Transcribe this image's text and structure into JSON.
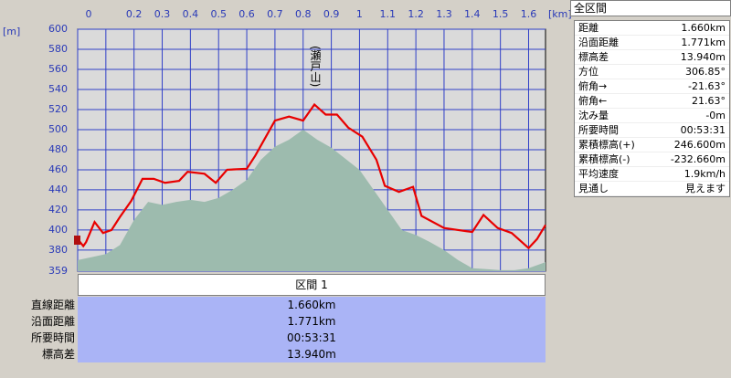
{
  "chart_data": {
    "type": "line",
    "x_unit_label": "[km]",
    "y_unit_label": "[m]",
    "annotation": "(瀬戸山)",
    "xlim": [
      0,
      1.66
    ],
    "ylim": [
      359,
      600
    ],
    "xticks": [
      0.0,
      {
        "value": 0.1,
        "label": null
      },
      0.2,
      0.3,
      0.4,
      0.5,
      0.6,
      0.7,
      0.8,
      0.9,
      1.0,
      1.1,
      1.2,
      1.3,
      1.4,
      1.5,
      1.6
    ],
    "yticks": [
      359,
      380,
      400,
      420,
      440,
      460,
      480,
      500,
      520,
      540,
      560,
      580,
      600
    ],
    "grid": true,
    "series": [
      {
        "color": "#9dbbae",
        "fill": true,
        "x": [
          0,
          0.05,
          0.1,
          0.15,
          0.2,
          0.25,
          0.3,
          0.35,
          0.4,
          0.45,
          0.5,
          0.55,
          0.6,
          0.65,
          0.7,
          0.75,
          0.8,
          0.85,
          0.9,
          1.0,
          1.05,
          1.1,
          1.15,
          1.2,
          1.25,
          1.3,
          1.35,
          1.4,
          1.45,
          1.5,
          1.55,
          1.6,
          1.66
        ],
        "values": [
          370,
          373,
          376,
          385,
          410,
          428,
          425,
          428,
          430,
          428,
          432,
          440,
          450,
          470,
          483,
          490,
          500,
          490,
          482,
          460,
          440,
          420,
          400,
          395,
          388,
          380,
          370,
          362,
          361,
          360,
          360,
          362,
          368
        ]
      },
      {
        "color": "#e80000",
        "fill": false,
        "x": [
          0,
          0.02,
          0.03,
          0.06,
          0.09,
          0.12,
          0.15,
          0.19,
          0.23,
          0.27,
          0.31,
          0.36,
          0.39,
          0.45,
          0.49,
          0.53,
          0.6,
          0.63,
          0.7,
          0.75,
          0.8,
          0.84,
          0.88,
          0.92,
          0.96,
          1.01,
          1.06,
          1.09,
          1.14,
          1.19,
          1.22,
          1.3,
          1.35,
          1.4,
          1.44,
          1.49,
          1.54,
          1.6,
          1.63,
          1.66
        ],
        "values": [
          391,
          384,
          388,
          408,
          397,
          400,
          413,
          429,
          451,
          451,
          447,
          449,
          458,
          456,
          447,
          460,
          461,
          474,
          509,
          513,
          509,
          525,
          515,
          515,
          502,
          493,
          470,
          444,
          438,
          443,
          414,
          402,
          400,
          398,
          415,
          402,
          397,
          382,
          391,
          405
        ]
      }
    ]
  },
  "summary": {
    "title": "全区間",
    "rows": [
      [
        "距離",
        "1.660km"
      ],
      [
        "沿面距離",
        "1.771km"
      ],
      [
        "標高差",
        "13.940m"
      ],
      [
        "方位",
        "306.85°"
      ],
      [
        "俯角→",
        "-21.63°"
      ],
      [
        "俯角←",
        "21.63°"
      ],
      [
        "沈み量",
        "-0m"
      ],
      [
        "所要時間",
        "00:53:31"
      ],
      [
        "累積標高(+)",
        "246.600m"
      ],
      [
        "累積標高(-)",
        "-232.660m"
      ],
      [
        "平均速度",
        "1.9km/h"
      ],
      [
        "見通し",
        "見えます"
      ]
    ]
  },
  "section": {
    "title": "区間 1",
    "rows": [
      [
        "直線距離",
        "1.660km"
      ],
      [
        "沿面距離",
        "1.771km"
      ],
      [
        "所要時間",
        "00:53:31"
      ],
      [
        "標高差",
        "13.940m"
      ]
    ]
  }
}
